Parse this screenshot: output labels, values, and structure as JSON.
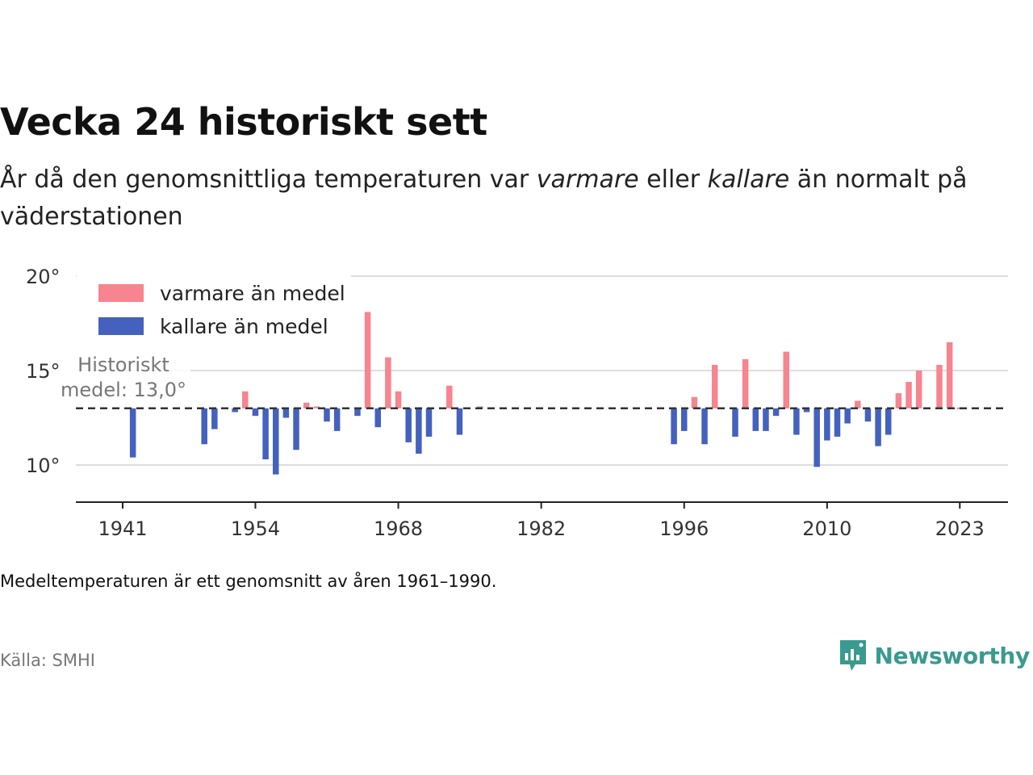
{
  "title": "Vecka 24 historiskt sett",
  "subtitle": {
    "part1": "År då den genomsnittliga temperaturen var ",
    "warm_word": "varmare",
    "part2": " eller ",
    "cold_word": "kallare",
    "part3": " än normalt på väderstationen"
  },
  "note": "Medeltemperaturen är ett genomsnitt av åren 1961–1990.",
  "source": "Källa: SMHI",
  "logo": {
    "text": "Newsworthy",
    "icon": "chart-bubble-icon"
  },
  "colors": {
    "warm": "#f7848f",
    "cold": "#4462bd",
    "baseline": "#333333",
    "grid": "#dddddd",
    "brand": "#3a9a8f"
  },
  "chart_data": {
    "type": "bar",
    "baseline": 13.0,
    "baseline_label": [
      "Historiskt",
      "medel: 13,0°"
    ],
    "ylim": [
      8,
      20
    ],
    "yticks": [
      10,
      15,
      20
    ],
    "ytick_labels": [
      "10°",
      "15°",
      "20°"
    ],
    "xlim": [
      1936.5,
      2027
    ],
    "xticks": [
      1941,
      1954,
      1968,
      1982,
      1996,
      2010,
      2023
    ],
    "legend": {
      "position": "top-left",
      "entries": [
        "varmare än medel",
        "kallare än medel"
      ]
    },
    "series": {
      "years": [
        1942,
        1949,
        1950,
        1952,
        1953,
        1954,
        1955,
        1956,
        1957,
        1958,
        1959,
        1960,
        1961,
        1962,
        1964,
        1965,
        1966,
        1967,
        1968,
        1969,
        1970,
        1971,
        1973,
        1974,
        1976,
        1995,
        1996,
        1997,
        1998,
        1999,
        2001,
        2002,
        2003,
        2004,
        2005,
        2006,
        2007,
        2008,
        2009,
        2010,
        2011,
        2012,
        2013,
        2014,
        2015,
        2016,
        2017,
        2018,
        2019,
        2021,
        2022,
        2023
      ],
      "values": [
        10.4,
        11.1,
        11.9,
        12.8,
        13.9,
        12.6,
        10.3,
        9.5,
        12.5,
        10.8,
        13.3,
        13.1,
        12.3,
        11.8,
        12.6,
        18.1,
        12.0,
        15.7,
        13.9,
        11.2,
        10.6,
        11.5,
        14.2,
        11.6,
        13.1,
        11.1,
        11.8,
        13.6,
        11.1,
        15.3,
        11.5,
        15.6,
        11.8,
        11.8,
        12.6,
        16.0,
        11.6,
        12.8,
        9.9,
        11.3,
        11.5,
        12.2,
        13.4,
        12.3,
        11.0,
        11.6,
        13.8,
        14.4,
        15.0,
        15.3,
        16.5,
        13.0
      ]
    }
  }
}
